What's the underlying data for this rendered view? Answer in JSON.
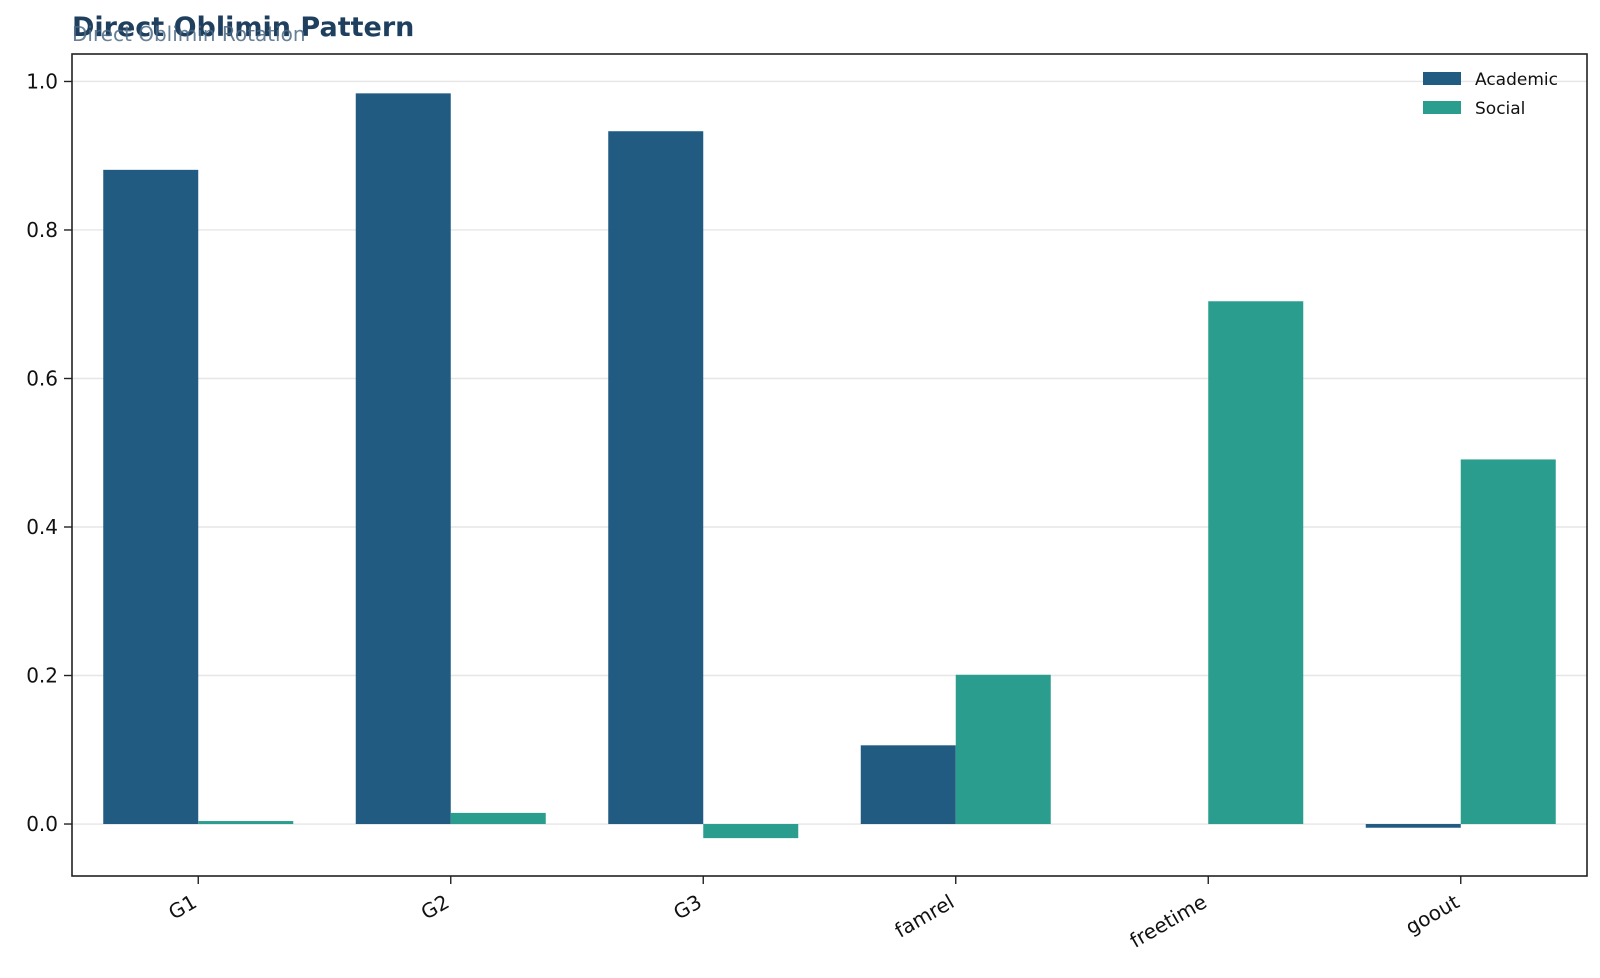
{
  "chart_data": {
    "type": "bar",
    "title": "Direct Oblimin Pattern",
    "subtitle": "Direct Oblimin Rotation",
    "xlabel": "",
    "ylabel": "",
    "categories": [
      "G1",
      "G2",
      "G3",
      "famrel",
      "freetime",
      "goout"
    ],
    "series": [
      {
        "name": "Academic",
        "color": "#215b81",
        "values": [
          0.881,
          0.984,
          0.933,
          0.106,
          0.0,
          -0.005
        ]
      },
      {
        "name": "Social",
        "color": "#2a9d8e",
        "values": [
          0.004,
          0.015,
          -0.019,
          0.201,
          0.704,
          0.491
        ]
      }
    ],
    "ylim": [
      -0.07,
      1.037
    ],
    "yticks": [
      "0.0",
      "0.2",
      "0.4",
      "0.6",
      "0.8",
      "1.0"
    ],
    "grid": true,
    "legend_position": "top-right"
  }
}
